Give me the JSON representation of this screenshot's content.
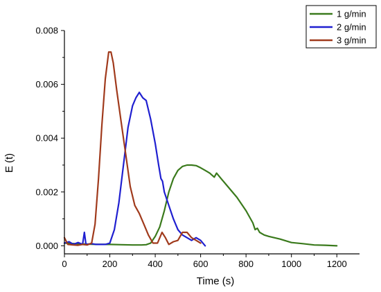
{
  "chart_data": {
    "type": "line",
    "title": "",
    "xlabel": "Time (s)",
    "ylabel": "E (t)",
    "xlim": [
      0,
      1300
    ],
    "ylim": [
      -0.0003,
      0.008
    ],
    "x_ticks": [
      0,
      200,
      400,
      600,
      800,
      1000,
      1200
    ],
    "x_tick_labels": [
      "0",
      "200",
      "400",
      "600",
      "800",
      "1000",
      "1200"
    ],
    "y_ticks": [
      0.0,
      0.002,
      0.004,
      0.006,
      0.008
    ],
    "y_tick_labels": [
      "0.000",
      "0.002",
      "0.004",
      "0.006",
      "0.008"
    ],
    "legend_position": "top-right",
    "grid": false,
    "series": [
      {
        "name": "1 g/min",
        "color": "#3a7a1c",
        "points": [
          [
            0,
            0.0001
          ],
          [
            50,
            8e-05
          ],
          [
            100,
            6e-05
          ],
          [
            150,
            5e-05
          ],
          [
            200,
            5e-05
          ],
          [
            250,
            4e-05
          ],
          [
            300,
            3e-05
          ],
          [
            340,
            3e-05
          ],
          [
            360,
            4e-05
          ],
          [
            380,
            0.0001
          ],
          [
            400,
            0.00035
          ],
          [
            420,
            0.0007
          ],
          [
            440,
            0.0013
          ],
          [
            460,
            0.002
          ],
          [
            480,
            0.0025
          ],
          [
            500,
            0.0028
          ],
          [
            520,
            0.00295
          ],
          [
            540,
            0.003
          ],
          [
            560,
            0.003
          ],
          [
            580,
            0.00298
          ],
          [
            600,
            0.0029
          ],
          [
            620,
            0.0028
          ],
          [
            640,
            0.0027
          ],
          [
            660,
            0.00255
          ],
          [
            670,
            0.0027
          ],
          [
            690,
            0.0025
          ],
          [
            720,
            0.0022
          ],
          [
            760,
            0.0018
          ],
          [
            800,
            0.0013
          ],
          [
            830,
            0.00085
          ],
          [
            840,
            0.0006
          ],
          [
            850,
            0.00065
          ],
          [
            860,
            0.0005
          ],
          [
            880,
            0.0004
          ],
          [
            900,
            0.00035
          ],
          [
            950,
            0.00025
          ],
          [
            1000,
            0.00012
          ],
          [
            1050,
            8e-05
          ],
          [
            1100,
            3e-05
          ],
          [
            1150,
            2e-05
          ],
          [
            1200,
            0.0
          ]
        ]
      },
      {
        "name": "2 g/min",
        "color": "#1f1fd0",
        "points": [
          [
            0,
            0.0001
          ],
          [
            20,
            0.00015
          ],
          [
            40,
            5e-05
          ],
          [
            60,
            0.00012
          ],
          [
            80,
            5e-05
          ],
          [
            88,
            0.0005
          ],
          [
            95,
            5e-05
          ],
          [
            120,
            8e-05
          ],
          [
            140,
            5e-05
          ],
          [
            180,
            5e-05
          ],
          [
            200,
            0.0001
          ],
          [
            220,
            0.0006
          ],
          [
            240,
            0.0016
          ],
          [
            260,
            0.003
          ],
          [
            280,
            0.0044
          ],
          [
            300,
            0.0052
          ],
          [
            315,
            0.0055
          ],
          [
            330,
            0.0057
          ],
          [
            345,
            0.0055
          ],
          [
            360,
            0.0054
          ],
          [
            380,
            0.0047
          ],
          [
            400,
            0.0038
          ],
          [
            415,
            0.003
          ],
          [
            425,
            0.0025
          ],
          [
            432,
            0.0024
          ],
          [
            440,
            0.002
          ],
          [
            460,
            0.0015
          ],
          [
            480,
            0.001
          ],
          [
            500,
            0.0006
          ],
          [
            520,
            0.0004
          ],
          [
            540,
            0.0003
          ],
          [
            560,
            0.0002
          ],
          [
            580,
            0.0003
          ],
          [
            600,
            0.0002
          ],
          [
            620,
            0.0
          ]
        ]
      },
      {
        "name": "3 g/min",
        "color": "#a03a1c",
        "points": [
          [
            0,
            0.0003
          ],
          [
            15,
            5e-05
          ],
          [
            40,
            3e-05
          ],
          [
            60,
            2e-05
          ],
          [
            80,
            5e-05
          ],
          [
            100,
            3e-05
          ],
          [
            120,
            0.0001
          ],
          [
            135,
            0.0008
          ],
          [
            150,
            0.0025
          ],
          [
            165,
            0.0045
          ],
          [
            180,
            0.0062
          ],
          [
            195,
            0.0072
          ],
          [
            205,
            0.0072
          ],
          [
            215,
            0.0068
          ],
          [
            230,
            0.0058
          ],
          [
            250,
            0.0046
          ],
          [
            270,
            0.0034
          ],
          [
            290,
            0.0022
          ],
          [
            310,
            0.0015
          ],
          [
            330,
            0.0012
          ],
          [
            350,
            0.0008
          ],
          [
            370,
            0.0004
          ],
          [
            390,
            0.0001
          ],
          [
            410,
            0.0001
          ],
          [
            430,
            0.0005
          ],
          [
            445,
            0.0003
          ],
          [
            460,
            5e-05
          ],
          [
            480,
            0.00015
          ],
          [
            500,
            0.0002
          ],
          [
            520,
            0.0005
          ],
          [
            540,
            0.0005
          ],
          [
            560,
            0.0003
          ],
          [
            580,
            0.0002
          ],
          [
            600,
            0.0001
          ]
        ]
      }
    ]
  }
}
